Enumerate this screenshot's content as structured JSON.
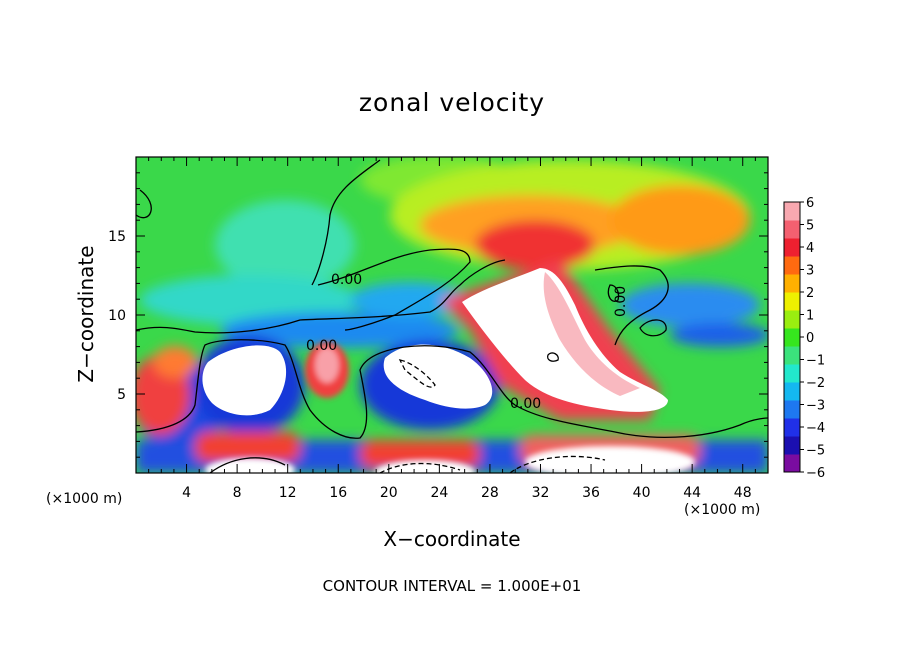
{
  "chart_data": {
    "type": "heatmap",
    "title": "zonal velocity",
    "xlabel": "X−coordinate",
    "ylabel": "Z−coordinate",
    "x_unit_left": "(×1000 m)",
    "x_unit_right": "(×1000 m)",
    "footnote": "CONTOUR INTERVAL = 1.000E+01",
    "xlim": [
      0,
      50
    ],
    "ylim": [
      0,
      20
    ],
    "x_ticks": [
      4,
      8,
      12,
      16,
      20,
      24,
      28,
      32,
      36,
      40,
      44,
      48
    ],
    "y_ticks": [
      5,
      10,
      15
    ],
    "colorbar": {
      "min": -6,
      "max": 6,
      "labels": [
        "6",
        "5",
        "4",
        "3",
        "2",
        "1",
        "0",
        "−1",
        "−2",
        "−3",
        "−4",
        "−5",
        "−6"
      ],
      "colors": [
        "#7a0ca0",
        "#1b0fb0",
        "#2030e8",
        "#1e78f0",
        "#14b8f0",
        "#22e8cc",
        "#3be37c",
        "#36e61e",
        "#9aee10",
        "#eef000",
        "#ffb000",
        "#ff6a10",
        "#ee2030",
        "#f46070",
        "#f8a8b0"
      ]
    },
    "contour_labels": [
      "0.00",
      "0.00",
      "0.00",
      "0.00"
    ],
    "grid": false,
    "legend": "colorbar at right"
  }
}
